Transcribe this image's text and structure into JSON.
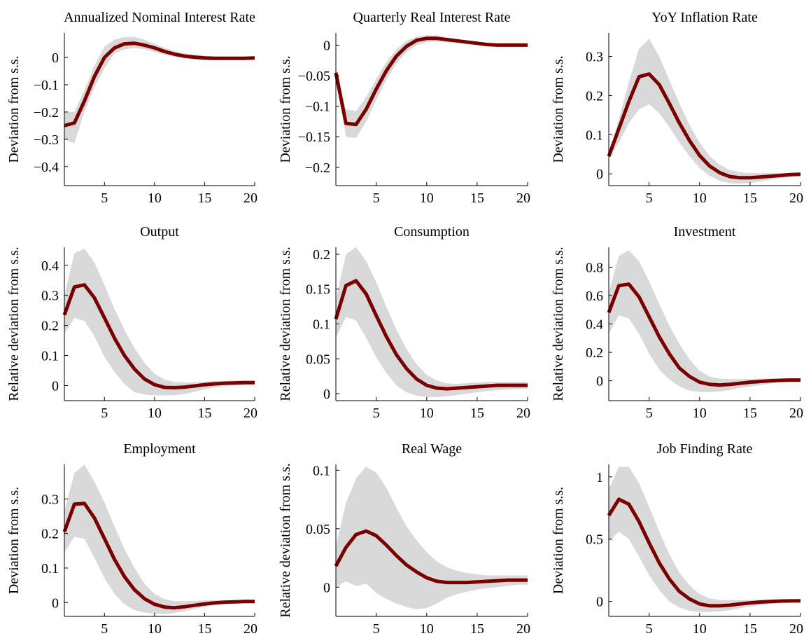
{
  "colors": {
    "line": "#7a0000",
    "band": "#d9d9d9",
    "axis": "#000000"
  },
  "chart_data": [
    {
      "type": "line",
      "title": "Annualized Nominal Interest Rate",
      "ylabel": "Deviation from s.s.",
      "x": [
        1,
        2,
        3,
        4,
        5,
        6,
        7,
        8,
        9,
        10,
        11,
        12,
        13,
        14,
        15,
        16,
        17,
        18,
        19,
        20
      ],
      "xlim": [
        1,
        20
      ],
      "ylim": [
        -0.47,
        0.09
      ],
      "xticks": [
        5,
        10,
        15,
        20
      ],
      "xticklabels": [
        "5",
        "10",
        "15",
        "20"
      ],
      "yticks": [
        -0.4,
        -0.3,
        -0.2,
        -0.1,
        0
      ],
      "yticklabels": [
        "−0.4",
        "−0.3",
        "−0.2",
        "−0.1",
        "0"
      ],
      "series": [
        {
          "values": [
            -0.25,
            -0.24,
            -0.16,
            -0.07,
            0.0,
            0.035,
            0.05,
            0.052,
            0.045,
            0.035,
            0.022,
            0.012,
            0.005,
            0.001,
            -0.002,
            -0.003,
            -0.003,
            -0.003,
            -0.003,
            -0.002
          ]
        }
      ],
      "band_lower": [
        -0.3,
        -0.315,
        -0.2,
        -0.11,
        -0.04,
        0.015,
        0.03,
        0.035,
        0.03,
        0.02,
        0.01,
        0.002,
        -0.005,
        -0.008,
        -0.01,
        -0.01,
        -0.009,
        -0.008,
        -0.007,
        -0.006
      ],
      "band_upper": [
        -0.2,
        -0.2,
        -0.12,
        -0.03,
        0.04,
        0.065,
        0.075,
        0.075,
        0.065,
        0.05,
        0.035,
        0.024,
        0.015,
        0.01,
        0.006,
        0.004,
        0.003,
        0.002,
        0.002,
        0.002
      ]
    },
    {
      "type": "line",
      "title": "Quarterly Real Interest Rate",
      "ylabel": "Deviation from s.s.",
      "x": [
        1,
        2,
        3,
        4,
        5,
        6,
        7,
        8,
        9,
        10,
        11,
        12,
        13,
        14,
        15,
        16,
        17,
        18,
        19,
        20
      ],
      "xlim": [
        1,
        20
      ],
      "ylim": [
        -0.23,
        0.02
      ],
      "xticks": [
        5,
        10,
        15,
        20
      ],
      "xticklabels": [
        "5",
        "10",
        "15",
        "20"
      ],
      "yticks": [
        -0.2,
        -0.15,
        -0.1,
        -0.05,
        0
      ],
      "yticklabels": [
        "−0.2",
        "−0.15",
        "−0.1",
        "−0.05",
        "0"
      ],
      "series": [
        {
          "values": [
            -0.045,
            -0.128,
            -0.13,
            -0.105,
            -0.072,
            -0.042,
            -0.018,
            -0.002,
            0.008,
            0.011,
            0.011,
            0.009,
            0.007,
            0.005,
            0.003,
            0.001,
            0.0,
            0.0,
            0.0,
            0.0
          ]
        }
      ],
      "band_lower": [
        -0.045,
        -0.15,
        -0.152,
        -0.125,
        -0.09,
        -0.057,
        -0.03,
        -0.012,
        0.0,
        0.005,
        0.006,
        0.005,
        0.004,
        0.002,
        0.0,
        -0.001,
        -0.002,
        -0.002,
        -0.002,
        -0.002
      ],
      "band_upper": [
        -0.045,
        -0.105,
        -0.108,
        -0.085,
        -0.055,
        -0.028,
        -0.007,
        0.007,
        0.014,
        0.016,
        0.016,
        0.013,
        0.01,
        0.008,
        0.005,
        0.003,
        0.002,
        0.002,
        0.002,
        0.001
      ]
    },
    {
      "type": "line",
      "title": "YoY Inflation Rate",
      "ylabel": "Deviation from s.s.",
      "x": [
        1,
        2,
        3,
        4,
        5,
        6,
        7,
        8,
        9,
        10,
        11,
        12,
        13,
        14,
        15,
        16,
        17,
        18,
        19,
        20
      ],
      "xlim": [
        1,
        20
      ],
      "ylim": [
        -0.03,
        0.36
      ],
      "xticks": [
        5,
        10,
        15,
        20
      ],
      "xticklabels": [
        "5",
        "10",
        "15",
        "20"
      ],
      "yticks": [
        0,
        0.1,
        0.2,
        0.3
      ],
      "yticklabels": [
        "0",
        "0.1",
        "0.2",
        "0.3"
      ],
      "series": [
        {
          "values": [
            0.045,
            0.115,
            0.185,
            0.248,
            0.255,
            0.228,
            0.18,
            0.13,
            0.085,
            0.047,
            0.02,
            0.003,
            -0.007,
            -0.01,
            -0.01,
            -0.008,
            -0.006,
            -0.004,
            -0.002,
            -0.001
          ]
        }
      ],
      "band_lower": [
        0.04,
        0.08,
        0.13,
        0.165,
        0.178,
        0.155,
        0.12,
        0.08,
        0.045,
        0.015,
        -0.005,
        -0.018,
        -0.024,
        -0.025,
        -0.023,
        -0.019,
        -0.015,
        -0.011,
        -0.008,
        -0.005
      ],
      "band_upper": [
        0.05,
        0.14,
        0.235,
        0.32,
        0.345,
        0.3,
        0.24,
        0.18,
        0.125,
        0.08,
        0.045,
        0.023,
        0.01,
        0.004,
        0.002,
        0.002,
        0.002,
        0.002,
        0.002,
        0.002
      ]
    },
    {
      "type": "line",
      "title": "Output",
      "ylabel": "Relative deviation from s.s.",
      "x": [
        1,
        2,
        3,
        4,
        5,
        6,
        7,
        8,
        9,
        10,
        11,
        12,
        13,
        14,
        15,
        16,
        17,
        18,
        19,
        20
      ],
      "xlim": [
        1,
        20
      ],
      "ylim": [
        -0.05,
        0.46
      ],
      "xticks": [
        5,
        10,
        15,
        20
      ],
      "xticklabels": [
        "5",
        "10",
        "15",
        "20"
      ],
      "yticks": [
        0,
        0.1,
        0.2,
        0.3,
        0.4
      ],
      "yticklabels": [
        "0",
        "0.1",
        "0.2",
        "0.3",
        "0.4"
      ],
      "series": [
        {
          "values": [
            0.235,
            0.328,
            0.335,
            0.292,
            0.225,
            0.158,
            0.1,
            0.055,
            0.022,
            0.003,
            -0.006,
            -0.007,
            -0.005,
            -0.001,
            0.003,
            0.006,
            0.008,
            0.009,
            0.01,
            0.01
          ]
        }
      ],
      "band_lower": [
        0.17,
        0.225,
        0.215,
        0.165,
        0.095,
        0.045,
        0.005,
        -0.022,
        -0.03,
        -0.032,
        -0.033,
        -0.032,
        -0.028,
        -0.02,
        -0.012,
        -0.006,
        -0.002,
        0.001,
        0.003,
        0.004
      ],
      "band_upper": [
        0.3,
        0.44,
        0.455,
        0.41,
        0.335,
        0.255,
        0.185,
        0.125,
        0.075,
        0.04,
        0.02,
        0.012,
        0.01,
        0.011,
        0.013,
        0.015,
        0.016,
        0.017,
        0.017,
        0.017
      ]
    },
    {
      "type": "line",
      "title": "Consumption",
      "ylabel": "Relative deviation from s.s.",
      "x": [
        1,
        2,
        3,
        4,
        5,
        6,
        7,
        8,
        9,
        10,
        11,
        12,
        13,
        14,
        15,
        16,
        17,
        18,
        19,
        20
      ],
      "xlim": [
        1,
        20
      ],
      "ylim": [
        -0.01,
        0.21
      ],
      "xticks": [
        5,
        10,
        15,
        20
      ],
      "xticklabels": [
        "5",
        "10",
        "15",
        "20"
      ],
      "yticks": [
        0,
        0.05,
        0.1,
        0.15,
        0.2
      ],
      "yticklabels": [
        "0",
        "0.05",
        "0.1",
        "0.15",
        "0.2"
      ],
      "series": [
        {
          "values": [
            0.107,
            0.155,
            0.162,
            0.143,
            0.112,
            0.082,
            0.056,
            0.036,
            0.021,
            0.012,
            0.008,
            0.007,
            0.008,
            0.009,
            0.01,
            0.011,
            0.012,
            0.012,
            0.012,
            0.012
          ]
        }
      ],
      "band_lower": [
        0.08,
        0.11,
        0.105,
        0.08,
        0.052,
        0.03,
        0.012,
        0.002,
        -0.003,
        -0.005,
        -0.005,
        -0.004,
        -0.002,
        0.0,
        0.002,
        0.004,
        0.005,
        0.006,
        0.007,
        0.007
      ],
      "band_upper": [
        0.135,
        0.2,
        0.21,
        0.19,
        0.16,
        0.125,
        0.092,
        0.064,
        0.042,
        0.027,
        0.019,
        0.015,
        0.014,
        0.015,
        0.016,
        0.017,
        0.017,
        0.017,
        0.017,
        0.017
      ]
    },
    {
      "type": "line",
      "title": "Investment",
      "ylabel": "Relative deviation from s.s.",
      "x": [
        1,
        2,
        3,
        4,
        5,
        6,
        7,
        8,
        9,
        10,
        11,
        12,
        13,
        14,
        15,
        16,
        17,
        18,
        19,
        20
      ],
      "xlim": [
        1,
        20
      ],
      "ylim": [
        -0.14,
        0.94
      ],
      "xticks": [
        5,
        10,
        15,
        20
      ],
      "xticklabels": [
        "5",
        "10",
        "15",
        "20"
      ],
      "yticks": [
        0,
        0.2,
        0.4,
        0.6,
        0.8
      ],
      "yticklabels": [
        "0",
        "0.2",
        "0.4",
        "0.6",
        "0.8"
      ],
      "series": [
        {
          "values": [
            0.48,
            0.67,
            0.68,
            0.59,
            0.45,
            0.31,
            0.19,
            0.09,
            0.03,
            -0.01,
            -0.025,
            -0.03,
            -0.025,
            -0.018,
            -0.01,
            -0.005,
            0.0,
            0.003,
            0.005,
            0.005
          ]
        }
      ],
      "band_lower": [
        0.33,
        0.46,
        0.44,
        0.33,
        0.19,
        0.08,
        0.01,
        -0.04,
        -0.07,
        -0.08,
        -0.08,
        -0.075,
        -0.065,
        -0.05,
        -0.04,
        -0.03,
        -0.02,
        -0.012,
        -0.008,
        -0.005
      ],
      "band_upper": [
        0.62,
        0.88,
        0.92,
        0.84,
        0.7,
        0.54,
        0.39,
        0.26,
        0.15,
        0.07,
        0.03,
        0.015,
        0.012,
        0.012,
        0.013,
        0.015,
        0.016,
        0.017,
        0.017,
        0.017
      ]
    },
    {
      "type": "line",
      "title": "Employment",
      "ylabel": "Deviation from s.s.",
      "x": [
        1,
        2,
        3,
        4,
        5,
        6,
        7,
        8,
        9,
        10,
        11,
        12,
        13,
        14,
        15,
        16,
        17,
        18,
        19,
        20
      ],
      "xlim": [
        1,
        20
      ],
      "ylim": [
        -0.04,
        0.4
      ],
      "xticks": [
        5,
        10,
        15,
        20
      ],
      "xticklabels": [
        "5",
        "10",
        "15",
        "20"
      ],
      "yticks": [
        0,
        0.1,
        0.2,
        0.3
      ],
      "yticklabels": [
        "0",
        "0.1",
        "0.2",
        "0.3"
      ],
      "series": [
        {
          "values": [
            0.205,
            0.285,
            0.287,
            0.245,
            0.185,
            0.125,
            0.075,
            0.037,
            0.011,
            -0.005,
            -0.013,
            -0.015,
            -0.012,
            -0.008,
            -0.004,
            -0.001,
            0.001,
            0.002,
            0.003,
            0.003
          ]
        }
      ],
      "band_lower": [
        0.145,
        0.19,
        0.185,
        0.13,
        0.07,
        0.025,
        -0.005,
        -0.022,
        -0.029,
        -0.032,
        -0.033,
        -0.03,
        -0.025,
        -0.018,
        -0.012,
        -0.007,
        -0.004,
        -0.002,
        -0.001,
        0.0
      ],
      "band_upper": [
        0.265,
        0.375,
        0.4,
        0.35,
        0.29,
        0.22,
        0.155,
        0.1,
        0.055,
        0.025,
        0.01,
        0.004,
        0.004,
        0.005,
        0.006,
        0.007,
        0.007,
        0.007,
        0.007,
        0.007
      ]
    },
    {
      "type": "line",
      "title": "Real Wage",
      "ylabel": "Relative deviation from s.s.",
      "x": [
        1,
        2,
        3,
        4,
        5,
        6,
        7,
        8,
        9,
        10,
        11,
        12,
        13,
        14,
        15,
        16,
        17,
        18,
        19,
        20
      ],
      "xlim": [
        1,
        20
      ],
      "ylim": [
        -0.025,
        0.105
      ],
      "xticks": [
        5,
        10,
        15,
        20
      ],
      "xticklabels": [
        "5",
        "10",
        "15",
        "20"
      ],
      "yticks": [
        0,
        0.05,
        0.1
      ],
      "yticklabels": [
        "0",
        "0.05",
        "0.1"
      ],
      "series": [
        {
          "values": [
            0.018,
            0.034,
            0.045,
            0.048,
            0.044,
            0.036,
            0.027,
            0.019,
            0.013,
            0.008,
            0.005,
            0.004,
            0.004,
            0.004,
            0.0045,
            0.005,
            0.0055,
            0.006,
            0.006,
            0.006
          ]
        }
      ],
      "band_lower": [
        0.0,
        0.005,
        0.001,
        0.003,
        -0.005,
        -0.01,
        -0.014,
        -0.017,
        -0.019,
        -0.018,
        -0.014,
        -0.009,
        -0.006,
        -0.004,
        -0.002,
        -0.001,
        0.0,
        0.001,
        0.002,
        0.002
      ],
      "band_upper": [
        0.035,
        0.072,
        0.093,
        0.103,
        0.098,
        0.085,
        0.068,
        0.052,
        0.04,
        0.03,
        0.022,
        0.017,
        0.014,
        0.012,
        0.011,
        0.01,
        0.01,
        0.01,
        0.01,
        0.01
      ]
    },
    {
      "type": "line",
      "title": "Job Finding Rate",
      "ylabel": "Deviation from s.s.",
      "x": [
        1,
        2,
        3,
        4,
        5,
        6,
        7,
        8,
        9,
        10,
        11,
        12,
        13,
        14,
        15,
        16,
        17,
        18,
        19,
        20
      ],
      "xlim": [
        1,
        20
      ],
      "ylim": [
        -0.12,
        1.1
      ],
      "xticks": [
        5,
        10,
        15,
        20
      ],
      "xticklabels": [
        "5",
        "10",
        "15",
        "20"
      ],
      "yticks": [
        0,
        0.5,
        1
      ],
      "yticklabels": [
        "0",
        "0.5",
        "1"
      ],
      "series": [
        {
          "values": [
            0.69,
            0.82,
            0.78,
            0.64,
            0.47,
            0.31,
            0.18,
            0.08,
            0.02,
            -0.02,
            -0.035,
            -0.035,
            -0.03,
            -0.02,
            -0.012,
            -0.005,
            0.0,
            0.003,
            0.004,
            0.005
          ]
        }
      ],
      "band_lower": [
        0.48,
        0.56,
        0.5,
        0.36,
        0.21,
        0.09,
        0.0,
        -0.05,
        -0.075,
        -0.085,
        -0.085,
        -0.08,
        -0.07,
        -0.055,
        -0.04,
        -0.03,
        -0.02,
        -0.012,
        -0.008,
        -0.005
      ],
      "band_upper": [
        0.9,
        1.08,
        1.08,
        0.95,
        0.76,
        0.56,
        0.38,
        0.23,
        0.13,
        0.06,
        0.025,
        0.012,
        0.01,
        0.011,
        0.012,
        0.013,
        0.014,
        0.014,
        0.014,
        0.014
      ]
    }
  ]
}
